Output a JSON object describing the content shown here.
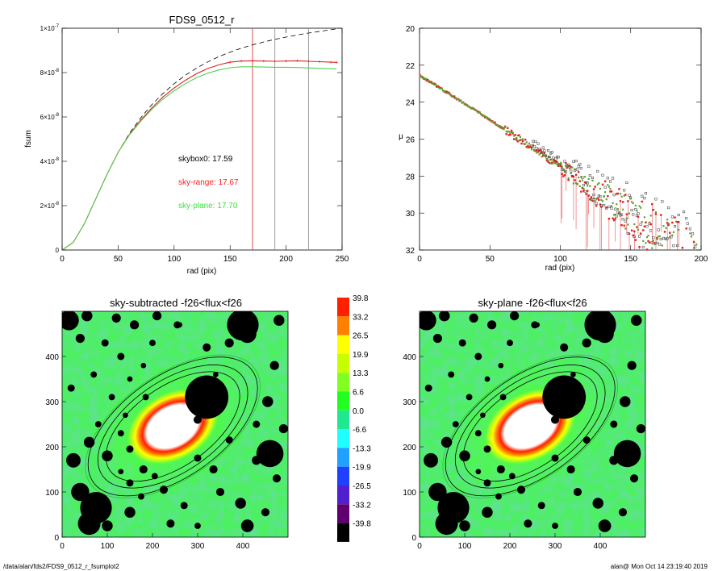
{
  "footer": {
    "path": "/data/alan/fds2/FDS9_0512_r_fsumplot2",
    "stamp": "alan@  Mon Oct 14 23:19:40 2019"
  },
  "chart_data": [
    {
      "type": "line",
      "title": "FDS9_0512_r",
      "xlabel": "rad (pix)",
      "ylabel": "fsum",
      "xlim": [
        0,
        250
      ],
      "ylim": [
        0,
        1e-07
      ],
      "xticks": [
        "0",
        "50",
        "100",
        "150",
        "200",
        "250"
      ],
      "ytick_values": [
        0,
        2e-08,
        4e-08,
        6e-08,
        8e-08,
        1e-07
      ],
      "ytick_mantissa": [
        "0",
        "2×10",
        "4×10",
        "6×10",
        "8×10",
        "1×10"
      ],
      "ytick_exponent": [
        "",
        "-8",
        "-8",
        "-8",
        "-8",
        "-7"
      ],
      "vlines": [
        {
          "x": 170,
          "color": "#e02020"
        },
        {
          "x": 190,
          "color": "#888888"
        },
        {
          "x": 220,
          "color": "#888888"
        }
      ],
      "annotations": [
        {
          "text": "skybox0: 17.59",
          "color": "#000000"
        },
        {
          "text": "sky-range: 17.67",
          "color": "#ff2020"
        },
        {
          "text": "sky-plane: 17.70",
          "color": "#40e040"
        }
      ],
      "series": [
        {
          "style": "dashed",
          "color": "#000000",
          "x": [
            0,
            10,
            20,
            30,
            40,
            50,
            60,
            70,
            80,
            90,
            100,
            110,
            120,
            130,
            140,
            150,
            160,
            170,
            180,
            190,
            200,
            210,
            220,
            230,
            240,
            245
          ],
          "y": [
            0,
            3.5e-09,
            1.2e-08,
            2.3e-08,
            3.4e-08,
            4.4e-08,
            5.25e-08,
            5.95e-08,
            6.55e-08,
            7.05e-08,
            7.5e-08,
            7.88e-08,
            8.2e-08,
            8.48e-08,
            8.72e-08,
            8.92e-08,
            9.1e-08,
            9.25e-08,
            9.38e-08,
            9.5e-08,
            9.6e-08,
            9.7e-08,
            9.78e-08,
            9.86e-08,
            9.93e-08,
            9.97e-08
          ]
        },
        {
          "style": "solid",
          "color": "#e02020",
          "x": [
            0,
            10,
            20,
            30,
            40,
            50,
            60,
            70,
            80,
            90,
            100,
            110,
            120,
            130,
            140,
            150,
            160,
            170,
            180,
            190,
            200,
            210,
            220,
            230,
            240,
            245
          ],
          "y": [
            0,
            3.5e-09,
            1.2e-08,
            2.3e-08,
            3.4e-08,
            4.4e-08,
            5.2e-08,
            5.85e-08,
            6.4e-08,
            6.9e-08,
            7.3e-08,
            7.65e-08,
            7.95e-08,
            8.18e-08,
            8.35e-08,
            8.47e-08,
            8.52e-08,
            8.53e-08,
            8.52e-08,
            8.51e-08,
            8.52e-08,
            8.53e-08,
            8.51e-08,
            8.49e-08,
            8.47e-08,
            8.46e-08
          ]
        },
        {
          "style": "solid",
          "color": "#50d050",
          "x": [
            0,
            10,
            20,
            30,
            40,
            50,
            60,
            70,
            80,
            90,
            100,
            110,
            120,
            130,
            140,
            150,
            160,
            170,
            180,
            190,
            200,
            210,
            220,
            230,
            240,
            245
          ],
          "y": [
            0,
            3.5e-09,
            1.2e-08,
            2.3e-08,
            3.4e-08,
            4.4e-08,
            5.18e-08,
            5.8e-08,
            6.33e-08,
            6.8e-08,
            7.18e-08,
            7.5e-08,
            7.77e-08,
            7.97e-08,
            8.12e-08,
            8.22e-08,
            8.26e-08,
            8.26e-08,
            8.25e-08,
            8.24e-08,
            8.24e-08,
            8.23e-08,
            8.21e-08,
            8.19e-08,
            8.17e-08,
            8.16e-08
          ]
        }
      ]
    },
    {
      "type": "scatter",
      "title": "",
      "xlabel": "rad (pix)",
      "ylabel": "μ",
      "xlim": [
        0,
        200
      ],
      "ylim": [
        32,
        20
      ],
      "xticks": [
        "0",
        "50",
        "100",
        "150",
        "200"
      ],
      "yticks": [
        "20",
        "22",
        "24",
        "26",
        "28",
        "30",
        "32"
      ],
      "profile_model": {
        "mu0": 22.55,
        "slope": 0.047,
        "curve": 2.5e-05
      }
    },
    {
      "type": "heatmap",
      "title": "sky-subtracted -f26<flux<f26",
      "xlim": [
        0,
        500
      ],
      "ylim": [
        0,
        500
      ],
      "xticks": [
        "0",
        "100",
        "200",
        "300",
        "400"
      ],
      "yticks": [
        "0",
        "100",
        "200",
        "300",
        "400"
      ]
    },
    {
      "type": "heatmap",
      "title": "sky-plane -f26<flux<f26",
      "xlim": [
        0,
        500
      ],
      "ylim": [
        0,
        500
      ],
      "xticks": [
        "0",
        "100",
        "200",
        "300",
        "400"
      ],
      "yticks": [
        "0",
        "100",
        "200",
        "300",
        "400"
      ]
    },
    {
      "type": "colorbar",
      "levels": [
        "39.8",
        "33.2",
        "26.5",
        "19.9",
        "13.3",
        "6.6",
        "0.0",
        "-6.6",
        "-13.3",
        "-19.9",
        "-26.5",
        "-33.2",
        "-39.8"
      ],
      "colors": [
        "#ff2000",
        "#ff8000",
        "#ffff00",
        "#c8ff00",
        "#80ff20",
        "#20ff20",
        "#20e890",
        "#20ffff",
        "#20a0ff",
        "#2040ff",
        "#5020d0",
        "#600070",
        "#000000"
      ]
    }
  ],
  "image_features": {
    "masks": [
      [
        15,
        480,
        22
      ],
      [
        55,
        490,
        12
      ],
      [
        120,
        485,
        10
      ],
      [
        160,
        470,
        10
      ],
      [
        210,
        490,
        10
      ],
      [
        255,
        470,
        8
      ],
      [
        400,
        470,
        35
      ],
      [
        410,
        450,
        20
      ],
      [
        370,
        430,
        10
      ],
      [
        480,
        480,
        12
      ],
      [
        470,
        380,
        10
      ],
      [
        40,
        440,
        10
      ],
      [
        95,
        430,
        8
      ],
      [
        130,
        400,
        8
      ],
      [
        70,
        360,
        7
      ],
      [
        20,
        330,
        8
      ],
      [
        320,
        420,
        9
      ],
      [
        300,
        260,
        9
      ],
      [
        290,
        320,
        7
      ],
      [
        260,
        470,
        6
      ],
      [
        200,
        430,
        7
      ],
      [
        180,
        380,
        6
      ],
      [
        150,
        350,
        6
      ],
      [
        340,
        360,
        6
      ],
      [
        455,
        300,
        12
      ],
      [
        430,
        250,
        8
      ],
      [
        490,
        240,
        10
      ],
      [
        80,
        250,
        7
      ],
      [
        60,
        210,
        12
      ],
      [
        25,
        170,
        16
      ],
      [
        100,
        180,
        12
      ],
      [
        130,
        230,
        7
      ],
      [
        140,
        270,
        6
      ],
      [
        150,
        195,
        8
      ],
      [
        180,
        150,
        9
      ],
      [
        205,
        135,
        7
      ],
      [
        150,
        120,
        8
      ],
      [
        130,
        145,
        6
      ],
      [
        300,
        175,
        8
      ],
      [
        335,
        150,
        9
      ],
      [
        370,
        215,
        8
      ],
      [
        40,
        100,
        20
      ],
      [
        75,
        65,
        35
      ],
      [
        60,
        30,
        25
      ],
      [
        100,
        25,
        12
      ],
      [
        150,
        55,
        12
      ],
      [
        175,
        90,
        7
      ],
      [
        225,
        105,
        9
      ],
      [
        270,
        70,
        8
      ],
      [
        240,
        30,
        9
      ],
      [
        300,
        25,
        7
      ],
      [
        350,
        100,
        9
      ],
      [
        395,
        75,
        12
      ],
      [
        410,
        25,
        14
      ],
      [
        450,
        55,
        9
      ],
      [
        475,
        130,
        9
      ],
      [
        460,
        185,
        30
      ],
      [
        430,
        170,
        10
      ],
      [
        110,
        310,
        7
      ],
      [
        185,
        310,
        7
      ]
    ],
    "galaxy": {
      "cx": 245,
      "cy": 245,
      "rx": 70,
      "ry": 48,
      "angle": -30
    },
    "big_mask": {
      "cx": 320,
      "cy": 310,
      "r": 48
    },
    "ellipses": [
      {
        "rx": 170,
        "ry": 88,
        "angle": -35,
        "color": "#000000"
      },
      {
        "rx": 190,
        "ry": 100,
        "angle": -35,
        "color": "#000000"
      },
      {
        "rx": 215,
        "ry": 112,
        "angle": -35,
        "color": "#000000"
      },
      {
        "rx": 222,
        "ry": 115,
        "angle": -35,
        "color": "#30c030"
      }
    ]
  }
}
